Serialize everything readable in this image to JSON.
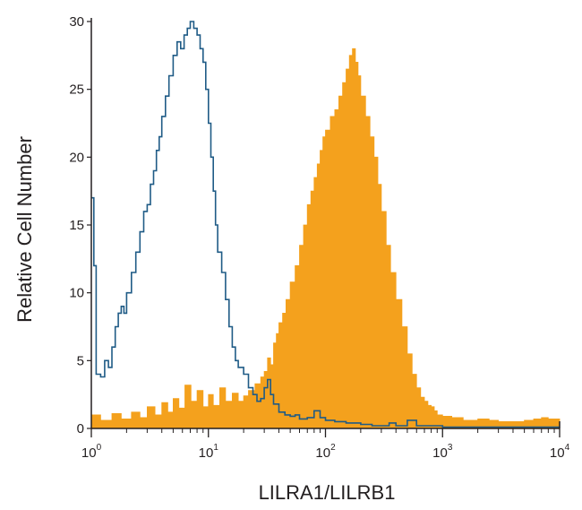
{
  "chart_data": {
    "type": "area",
    "xlabel": "LILRA1/LILRB1",
    "ylabel": "Relative Cell Number",
    "x_scale": "log",
    "xlim": [
      1,
      10000
    ],
    "ylim": [
      0,
      30
    ],
    "grid": false,
    "y_ticks": [
      {
        "value": 0,
        "label": "0"
      },
      {
        "value": 5,
        "label": "5"
      },
      {
        "value": 10,
        "label": "10"
      },
      {
        "value": 15,
        "label": "15"
      },
      {
        "value": 20,
        "label": "20"
      },
      {
        "value": 25,
        "label": "25"
      },
      {
        "value": 30,
        "label": "30"
      }
    ],
    "x_ticks": [
      {
        "value": 1,
        "base": "10",
        "exp": "0"
      },
      {
        "value": 10,
        "base": "10",
        "exp": "1"
      },
      {
        "value": 100,
        "base": "10",
        "exp": "2"
      },
      {
        "value": 1000,
        "base": "10",
        "exp": "3"
      },
      {
        "value": 10000,
        "base": "10",
        "exp": "4"
      }
    ],
    "series": [
      {
        "style": "filled",
        "color": "#f4a11d",
        "points": [
          [
            1.0,
            1.0
          ],
          [
            1.2,
            0.6
          ],
          [
            1.5,
            1.1
          ],
          [
            1.8,
            0.7
          ],
          [
            2.2,
            1.2
          ],
          [
            2.6,
            0.8
          ],
          [
            3.0,
            1.6
          ],
          [
            3.5,
            1.0
          ],
          [
            4.0,
            1.9
          ],
          [
            4.5,
            1.2
          ],
          [
            5.0,
            2.2
          ],
          [
            5.6,
            1.5
          ],
          [
            6.3,
            3.2
          ],
          [
            7.1,
            2.0
          ],
          [
            8.0,
            2.8
          ],
          [
            9.0,
            1.6
          ],
          [
            10,
            2.5
          ],
          [
            11,
            1.7
          ],
          [
            12.5,
            3.0
          ],
          [
            14,
            2.0
          ],
          [
            16,
            2.6
          ],
          [
            18,
            2.0
          ],
          [
            20,
            2.4
          ],
          [
            22,
            2.8
          ],
          [
            25,
            3.3
          ],
          [
            28,
            3.8
          ],
          [
            30,
            4.2
          ],
          [
            32,
            5.2
          ],
          [
            34,
            4.7
          ],
          [
            36,
            6.3
          ],
          [
            38,
            7.0
          ],
          [
            40,
            7.8
          ],
          [
            43,
            8.5
          ],
          [
            46,
            9.5
          ],
          [
            50,
            10.8
          ],
          [
            55,
            12.0
          ],
          [
            60,
            13.5
          ],
          [
            65,
            15.0
          ],
          [
            70,
            16.5
          ],
          [
            75,
            17.5
          ],
          [
            80,
            18.5
          ],
          [
            85,
            19.5
          ],
          [
            90,
            20.5
          ],
          [
            95,
            21.5
          ],
          [
            100,
            22.0
          ],
          [
            110,
            23.0
          ],
          [
            120,
            23.5
          ],
          [
            130,
            24.5
          ],
          [
            140,
            25.5
          ],
          [
            150,
            26.5
          ],
          [
            160,
            27.5
          ],
          [
            170,
            28.0
          ],
          [
            180,
            27.0
          ],
          [
            190,
            26.0
          ],
          [
            200,
            24.5
          ],
          [
            220,
            23.0
          ],
          [
            240,
            21.5
          ],
          [
            260,
            20.0
          ],
          [
            280,
            18.0
          ],
          [
            300,
            16.0
          ],
          [
            330,
            13.5
          ],
          [
            360,
            11.5
          ],
          [
            400,
            9.5
          ],
          [
            450,
            7.5
          ],
          [
            500,
            5.5
          ],
          [
            550,
            4.0
          ],
          [
            600,
            3.0
          ],
          [
            650,
            2.3
          ],
          [
            700,
            2.0
          ],
          [
            750,
            1.7
          ],
          [
            800,
            1.6
          ],
          [
            850,
            1.3
          ],
          [
            900,
            1.0
          ],
          [
            1000,
            0.9
          ],
          [
            1200,
            0.8
          ],
          [
            1500,
            0.6
          ],
          [
            2000,
            0.7
          ],
          [
            2500,
            0.6
          ],
          [
            3000,
            0.5
          ],
          [
            4000,
            0.5
          ],
          [
            5000,
            0.6
          ],
          [
            6000,
            0.7
          ],
          [
            7000,
            0.8
          ],
          [
            8000,
            0.7
          ],
          [
            10000,
            0.6
          ]
        ]
      },
      {
        "style": "outline",
        "color": "#1f5b86",
        "points": [
          [
            1.0,
            17.0
          ],
          [
            1.05,
            12.0
          ],
          [
            1.1,
            4.0
          ],
          [
            1.2,
            3.8
          ],
          [
            1.3,
            5.0
          ],
          [
            1.4,
            4.5
          ],
          [
            1.5,
            6.0
          ],
          [
            1.6,
            7.5
          ],
          [
            1.7,
            8.5
          ],
          [
            1.8,
            9.0
          ],
          [
            1.9,
            8.5
          ],
          [
            2.0,
            10.0
          ],
          [
            2.2,
            11.5
          ],
          [
            2.4,
            13.0
          ],
          [
            2.6,
            14.5
          ],
          [
            2.8,
            16.0
          ],
          [
            3.0,
            16.5
          ],
          [
            3.2,
            18.0
          ],
          [
            3.4,
            19.0
          ],
          [
            3.6,
            20.5
          ],
          [
            3.8,
            21.5
          ],
          [
            4.0,
            23.0
          ],
          [
            4.3,
            24.5
          ],
          [
            4.6,
            26.0
          ],
          [
            5.0,
            27.5
          ],
          [
            5.4,
            28.5
          ],
          [
            5.8,
            28.0
          ],
          [
            6.2,
            29.0
          ],
          [
            6.6,
            29.5
          ],
          [
            7.0,
            30.0
          ],
          [
            7.5,
            29.5
          ],
          [
            8.0,
            29.0
          ],
          [
            8.5,
            28.0
          ],
          [
            9.0,
            27.0
          ],
          [
            9.5,
            25.0
          ],
          [
            10,
            22.5
          ],
          [
            10.5,
            20.0
          ],
          [
            11,
            17.5
          ],
          [
            11.5,
            15.0
          ],
          [
            12,
            13.0
          ],
          [
            13,
            11.5
          ],
          [
            14,
            9.5
          ],
          [
            15,
            7.5
          ],
          [
            16,
            6.0
          ],
          [
            17,
            5.0
          ],
          [
            18,
            4.5
          ],
          [
            20,
            4.0
          ],
          [
            22,
            3.0
          ],
          [
            24,
            2.5
          ],
          [
            26,
            2.0
          ],
          [
            28,
            2.2
          ],
          [
            30,
            3.0
          ],
          [
            32,
            3.6
          ],
          [
            34,
            2.5
          ],
          [
            36,
            1.8
          ],
          [
            40,
            1.2
          ],
          [
            45,
            1.0
          ],
          [
            50,
            0.9
          ],
          [
            55,
            1.0
          ],
          [
            60,
            0.7
          ],
          [
            70,
            0.8
          ],
          [
            80,
            1.3
          ],
          [
            90,
            0.8
          ],
          [
            100,
            0.6
          ],
          [
            120,
            0.5
          ],
          [
            150,
            0.4
          ],
          [
            200,
            0.3
          ],
          [
            250,
            0.2
          ],
          [
            300,
            0.2
          ],
          [
            350,
            0.4
          ],
          [
            400,
            0.2
          ],
          [
            500,
            0.6
          ],
          [
            600,
            0.2
          ],
          [
            700,
            0.2
          ],
          [
            1000,
            0.1
          ],
          [
            2000,
            0.1
          ],
          [
            5000,
            0.1
          ],
          [
            10000,
            0.1
          ]
        ]
      }
    ]
  }
}
